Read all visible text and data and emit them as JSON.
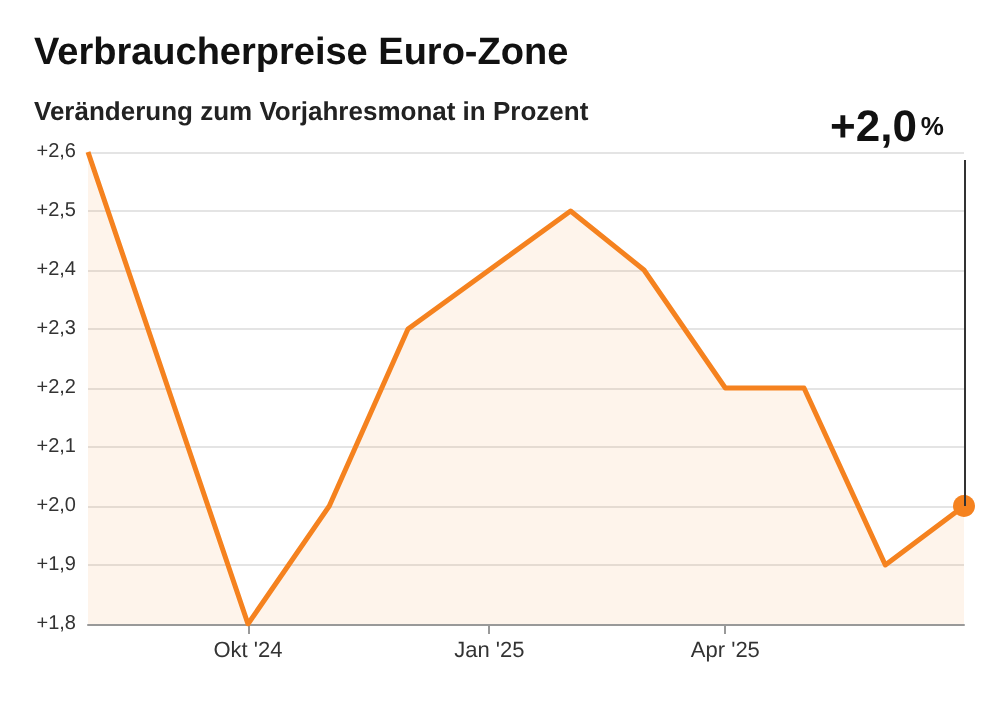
{
  "chart_data": {
    "type": "area",
    "title": "Verbraucherpreise Euro-Zone",
    "subtitle": "Veränderung zum Vorjahresmonat in Prozent",
    "x": [
      "2024-08",
      "2024-10",
      "2024-11",
      "2024-12",
      "2025-01",
      "2025-02",
      "2025-03",
      "2025-04",
      "2025-05",
      "2025-06",
      "2025-07"
    ],
    "series": [
      {
        "color": "#f5821f",
        "values": [
          2.6,
          1.8,
          2.0,
          2.3,
          2.4,
          2.5,
          2.4,
          2.2,
          2.2,
          1.9,
          2.0
        ]
      }
    ],
    "xlim": [
      "2024-08",
      "2025-07"
    ],
    "xticks": [
      {
        "value": "2024-10",
        "label": "Okt '24"
      },
      {
        "value": "2025-01",
        "label": "Jan '25"
      },
      {
        "value": "2025-04",
        "label": "Apr '25"
      }
    ],
    "ylim": [
      1.8,
      2.6
    ],
    "yticks": [
      {
        "value": 1.8,
        "label": "+1,8"
      },
      {
        "value": 1.9,
        "label": "+1,9"
      },
      {
        "value": 2.0,
        "label": "+2,0"
      },
      {
        "value": 2.1,
        "label": "+2,1"
      },
      {
        "value": 2.2,
        "label": "+2,2"
      },
      {
        "value": 2.3,
        "label": "+2,3"
      },
      {
        "value": 2.4,
        "label": "+2,4"
      },
      {
        "value": 2.5,
        "label": "+2,5"
      },
      {
        "value": 2.6,
        "label": "+2,6"
      }
    ],
    "grid": "y",
    "annotations": [
      "+2,0%"
    ]
  }
}
